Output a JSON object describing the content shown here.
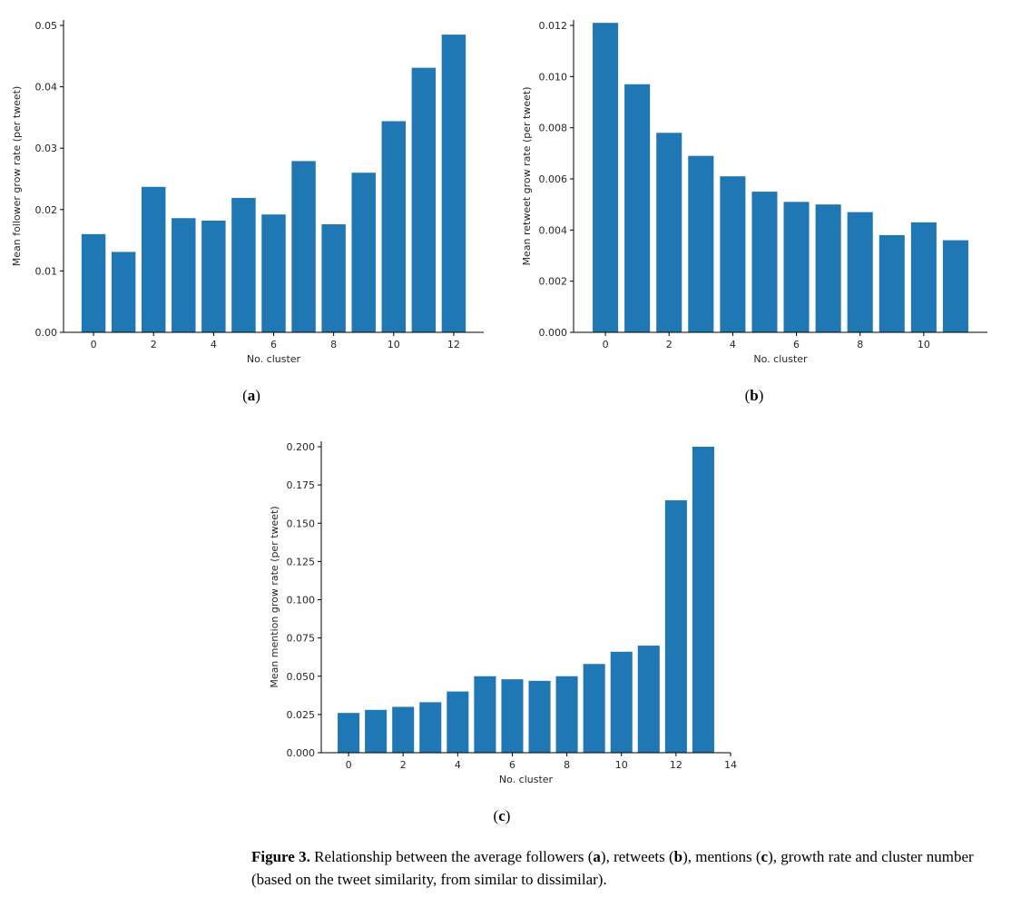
{
  "chart_data": [
    {
      "type": "bar",
      "x": [
        0,
        1,
        2,
        3,
        4,
        5,
        6,
        7,
        8,
        9,
        10,
        11,
        12
      ],
      "values": [
        0.016,
        0.0131,
        0.0237,
        0.0186,
        0.0182,
        0.0219,
        0.0192,
        0.0279,
        0.0176,
        0.026,
        0.0344,
        0.0431,
        0.0485
      ],
      "xlabel": "No. cluster",
      "ylabel": "Mean follower grow rate (per tweet)",
      "xlim": [
        -1,
        13
      ],
      "ylim": [
        0,
        0.05
      ],
      "xticks": [
        0,
        2,
        4,
        6,
        8,
        10,
        12
      ],
      "xtick_labels": [
        "0",
        "2",
        "4",
        "6",
        "8",
        "10",
        "12"
      ],
      "yticks": [
        0,
        0.01,
        0.02,
        0.03,
        0.04,
        0.05
      ],
      "ytick_labels": [
        "0.00",
        "0.01",
        "0.02",
        "0.03",
        "0.04",
        "0.05"
      ],
      "color": "#1f77b4",
      "grid": false
    },
    {
      "type": "bar",
      "x": [
        0,
        1,
        2,
        3,
        4,
        5,
        6,
        7,
        8,
        9,
        10,
        11
      ],
      "values": [
        0.0121,
        0.0097,
        0.0078,
        0.0069,
        0.0061,
        0.0055,
        0.0051,
        0.005,
        0.0047,
        0.0038,
        0.0043,
        0.0036
      ],
      "xlabel": "No. cluster",
      "ylabel": "Mean retweet grow rate (per tweet)",
      "xlim": [
        -1,
        12
      ],
      "ylim": [
        0,
        0.012
      ],
      "xticks": [
        0,
        2,
        4,
        6,
        8,
        10
      ],
      "xtick_labels": [
        "0",
        "2",
        "4",
        "6",
        "8",
        "10"
      ],
      "yticks": [
        0,
        0.002,
        0.004,
        0.006,
        0.008,
        0.01,
        0.012
      ],
      "ytick_labels": [
        "0.000",
        "0.002",
        "0.004",
        "0.006",
        "0.008",
        "0.010",
        "0.012"
      ],
      "color": "#1f77b4",
      "grid": false
    },
    {
      "type": "bar",
      "x": [
        0,
        1,
        2,
        3,
        4,
        5,
        6,
        7,
        8,
        9,
        10,
        11,
        12,
        13
      ],
      "values": [
        0.026,
        0.028,
        0.03,
        0.033,
        0.04,
        0.05,
        0.048,
        0.047,
        0.05,
        0.058,
        0.066,
        0.07,
        0.165,
        0.2
      ],
      "xlabel": "No. cluster",
      "ylabel": "Mean mention grow rate (per tweet)",
      "xlim": [
        -1,
        14
      ],
      "ylim": [
        0,
        0.2
      ],
      "xticks": [
        0,
        2,
        4,
        6,
        8,
        10,
        12,
        14
      ],
      "xtick_labels": [
        "0",
        "2",
        "4",
        "6",
        "8",
        "10",
        "12",
        "14"
      ],
      "yticks": [
        0,
        0.025,
        0.05,
        0.075,
        0.1,
        0.125,
        0.15,
        0.175,
        0.2
      ],
      "ytick_labels": [
        "0.000",
        "0.025",
        "0.050",
        "0.075",
        "0.100",
        "0.125",
        "0.150",
        "0.175",
        "0.200"
      ],
      "color": "#1f77b4",
      "grid": false
    }
  ],
  "subfigures": [
    {
      "open": "(",
      "letter": "a",
      "close": ")"
    },
    {
      "open": "(",
      "letter": "b",
      "close": ")"
    },
    {
      "open": "(",
      "letter": "c",
      "close": ")"
    }
  ],
  "caption": {
    "label": "Figure 3.",
    "text": " Relationship between the average followers (",
    "a": "a",
    "t2": "), retweets (",
    "b": "b",
    "t3": "), mentions (",
    "c": "c",
    "t4": "), growth rate and cluster number (based on the tweet similarity, from similar to dissimilar)."
  }
}
